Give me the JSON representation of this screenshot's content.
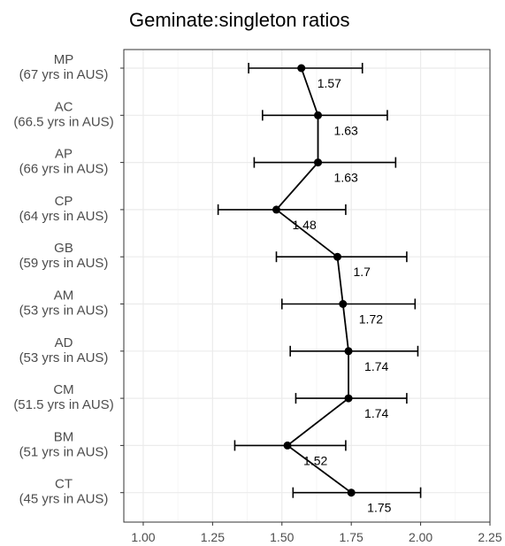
{
  "chart_data": {
    "type": "scatter",
    "title": "Geminate:singleton ratios",
    "xlabel": "",
    "ylabel": "",
    "xlim": [
      0.93,
      2.25
    ],
    "x_ticks": [
      "1.00",
      "1.25",
      "1.50",
      "1.75",
      "2.00",
      "2.25"
    ],
    "x_tick_values": [
      1.0,
      1.25,
      1.5,
      1.75,
      2.0,
      2.25
    ],
    "grid": true,
    "legend": "none",
    "categories": [
      {
        "name": "MP",
        "sub": "(67 yrs in AUS)"
      },
      {
        "name": "AC",
        "sub": "(66.5 yrs in AUS)"
      },
      {
        "name": "AP",
        "sub": "(66 yrs in AUS)"
      },
      {
        "name": "CP",
        "sub": "(64 yrs in AUS)"
      },
      {
        "name": "GB",
        "sub": "(59 yrs in AUS)"
      },
      {
        "name": "AM",
        "sub": "(53 yrs in AUS)"
      },
      {
        "name": "AD",
        "sub": "(53 yrs in AUS)"
      },
      {
        "name": "CM",
        "sub": "(51.5 yrs in AUS)"
      },
      {
        "name": "BM",
        "sub": "(51 yrs in AUS)"
      },
      {
        "name": "CT",
        "sub": "(45 yrs in AUS)"
      }
    ],
    "values": [
      1.57,
      1.63,
      1.63,
      1.48,
      1.7,
      1.72,
      1.74,
      1.74,
      1.52,
      1.75
    ],
    "value_labels": [
      "1.57",
      "1.63",
      "1.63",
      "1.48",
      "1.7",
      "1.72",
      "1.74",
      "1.74",
      "1.52",
      "1.75"
    ],
    "error_low": [
      1.38,
      1.43,
      1.4,
      1.27,
      1.48,
      1.5,
      1.53,
      1.55,
      1.33,
      1.54
    ],
    "error_high": [
      1.79,
      1.88,
      1.91,
      1.73,
      1.95,
      1.98,
      1.99,
      1.95,
      1.73,
      2.0
    ],
    "colors": {
      "background": "#ffffff",
      "grid": "#ebebeb",
      "border": "#333333",
      "ink": "#000000",
      "axis_text": "#4d4d4d"
    }
  }
}
